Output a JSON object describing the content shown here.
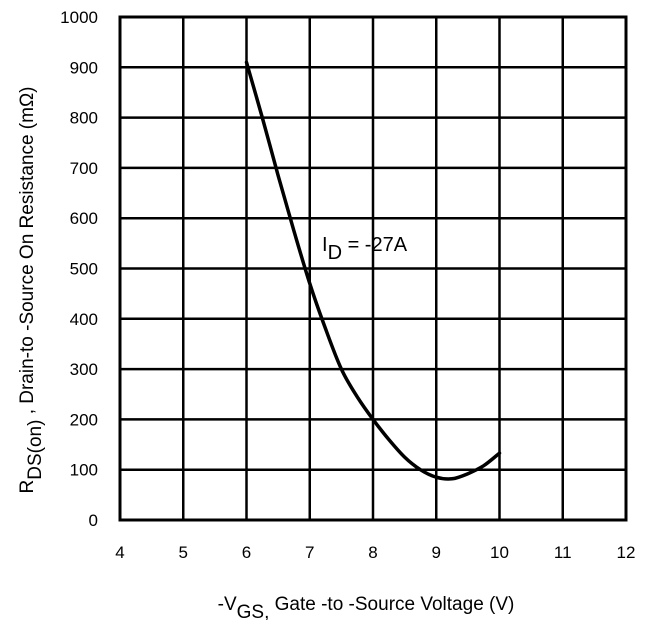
{
  "chart_data": {
    "type": "line",
    "x_min": 4,
    "x_max": 12,
    "y_min": 0,
    "y_max": 1000,
    "x_ticks": [
      4,
      5,
      6,
      7,
      8,
      9,
      10,
      11,
      12
    ],
    "y_ticks": [
      0,
      100,
      200,
      300,
      400,
      500,
      600,
      700,
      800,
      900,
      1000
    ],
    "grid": true,
    "xlabel": {
      "pre": "-V",
      "sub": "GS,",
      "post": " Gate -to -Source Voltage  (V)"
    },
    "ylabel": {
      "pre": "R",
      "sub": "DS(on)",
      "post": " ,  Drain-to -Source On Resistance (mΩ)"
    },
    "annotation": {
      "pre": "I",
      "sub": "D",
      "post": " = -27A"
    },
    "series": [
      {
        "x": [
          6.0,
          6.25,
          6.5,
          6.75,
          7.0,
          7.25,
          7.5,
          7.75,
          8.0,
          8.25,
          8.5,
          8.75,
          9.0,
          9.25,
          9.5,
          9.75,
          10.0
        ],
        "y": [
          910,
          800,
          685,
          575,
          470,
          380,
          300,
          245,
          200,
          160,
          125,
          100,
          85,
          82,
          92,
          108,
          133
        ]
      }
    ]
  }
}
